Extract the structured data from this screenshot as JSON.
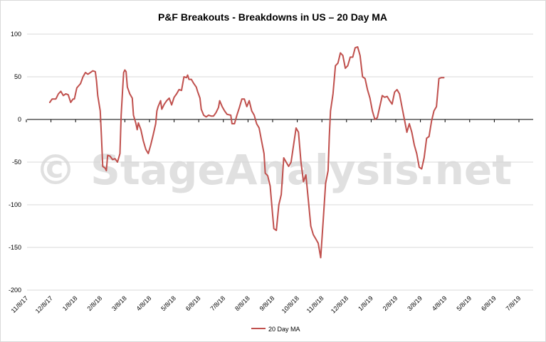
{
  "chart_data": {
    "type": "line",
    "title": "P&F Breakouts - Breakdowns in US – 20 Day MA",
    "watermark": "© StageAnalysis.net",
    "xlabel": "",
    "ylabel": "",
    "ylim": [
      -200,
      100
    ],
    "yticks": [
      100,
      50,
      0,
      -50,
      -100,
      -150,
      -200
    ],
    "x_tick_labels": [
      "11/8/17",
      "12/8/17",
      "1/8/18",
      "2/8/18",
      "3/8/18",
      "4/8/18",
      "5/8/18",
      "6/8/18",
      "7/8/18",
      "8/8/18",
      "9/8/18",
      "10/8/18",
      "11/8/18",
      "12/8/18",
      "1/8/19",
      "2/8/19",
      "3/8/19",
      "4/8/19",
      "5/8/19",
      "6/8/19",
      "7/8/19"
    ],
    "legend": "bottom",
    "series": [
      {
        "name": "20 Day MA",
        "color": "#c0504d",
        "points": [
          [
            0.95,
            20
          ],
          [
            1.05,
            24
          ],
          [
            1.2,
            24
          ],
          [
            1.3,
            30
          ],
          [
            1.4,
            33
          ],
          [
            1.5,
            28
          ],
          [
            1.6,
            30
          ],
          [
            1.7,
            29
          ],
          [
            1.8,
            20
          ],
          [
            1.9,
            24
          ],
          [
            1.95,
            24
          ],
          [
            2.05,
            37
          ],
          [
            2.2,
            42
          ],
          [
            2.3,
            50
          ],
          [
            2.4,
            55
          ],
          [
            2.5,
            53
          ],
          [
            2.6,
            55
          ],
          [
            2.7,
            57
          ],
          [
            2.8,
            56
          ],
          [
            2.85,
            45
          ],
          [
            2.9,
            28
          ],
          [
            3.0,
            10
          ],
          [
            3.05,
            -20
          ],
          [
            3.1,
            -55
          ],
          [
            3.2,
            -57
          ],
          [
            3.25,
            -60
          ],
          [
            3.3,
            -42
          ],
          [
            3.4,
            -43
          ],
          [
            3.5,
            -47
          ],
          [
            3.6,
            -46
          ],
          [
            3.7,
            -50
          ],
          [
            3.8,
            -40
          ],
          [
            3.85,
            5
          ],
          [
            3.9,
            30
          ],
          [
            3.95,
            55
          ],
          [
            4.0,
            58
          ],
          [
            4.05,
            56
          ],
          [
            4.1,
            38
          ],
          [
            4.2,
            30
          ],
          [
            4.3,
            25
          ],
          [
            4.35,
            5
          ],
          [
            4.45,
            -5
          ],
          [
            4.5,
            -12
          ],
          [
            4.55,
            -4
          ],
          [
            4.65,
            -12
          ],
          [
            4.75,
            -25
          ],
          [
            4.85,
            -35
          ],
          [
            4.95,
            -40
          ],
          [
            5.05,
            -30
          ],
          [
            5.15,
            -18
          ],
          [
            5.25,
            -5
          ],
          [
            5.3,
            10
          ],
          [
            5.35,
            15
          ],
          [
            5.45,
            22
          ],
          [
            5.5,
            12
          ],
          [
            5.6,
            18
          ],
          [
            5.7,
            22
          ],
          [
            5.8,
            25
          ],
          [
            5.9,
            17
          ],
          [
            6.0,
            26
          ],
          [
            6.1,
            30
          ],
          [
            6.2,
            35
          ],
          [
            6.3,
            34
          ],
          [
            6.4,
            50
          ],
          [
            6.5,
            49
          ],
          [
            6.55,
            52
          ],
          [
            6.6,
            47
          ],
          [
            6.7,
            47
          ],
          [
            6.8,
            42
          ],
          [
            6.9,
            38
          ],
          [
            6.95,
            33
          ],
          [
            7.05,
            25
          ],
          [
            7.1,
            12
          ],
          [
            7.2,
            5
          ],
          [
            7.3,
            3
          ],
          [
            7.4,
            5
          ],
          [
            7.5,
            4
          ],
          [
            7.6,
            4
          ],
          [
            7.7,
            8
          ],
          [
            7.8,
            14
          ],
          [
            7.85,
            22
          ],
          [
            7.95,
            15
          ],
          [
            8.05,
            10
          ],
          [
            8.15,
            6
          ],
          [
            8.3,
            5
          ],
          [
            8.35,
            -5
          ],
          [
            8.45,
            -5
          ],
          [
            8.55,
            5
          ],
          [
            8.65,
            14
          ],
          [
            8.75,
            24
          ],
          [
            8.85,
            24
          ],
          [
            8.95,
            15
          ],
          [
            9.05,
            22
          ],
          [
            9.15,
            10
          ],
          [
            9.25,
            5
          ],
          [
            9.35,
            -5
          ],
          [
            9.45,
            -10
          ],
          [
            9.55,
            -25
          ],
          [
            9.65,
            -40
          ],
          [
            9.7,
            -63
          ],
          [
            9.8,
            -66
          ],
          [
            9.9,
            -78
          ],
          [
            10.0,
            -112
          ],
          [
            10.05,
            -128
          ],
          [
            10.15,
            -130
          ],
          [
            10.25,
            -100
          ],
          [
            10.35,
            -88
          ],
          [
            10.45,
            -45
          ],
          [
            10.55,
            -50
          ],
          [
            10.65,
            -55
          ],
          [
            10.75,
            -50
          ],
          [
            10.85,
            -30
          ],
          [
            10.95,
            -10
          ],
          [
            11.05,
            -15
          ],
          [
            11.15,
            -50
          ],
          [
            11.25,
            -73
          ],
          [
            11.35,
            -65
          ],
          [
            11.45,
            -95
          ],
          [
            11.55,
            -125
          ],
          [
            11.65,
            -135
          ],
          [
            11.75,
            -140
          ],
          [
            11.85,
            -145
          ],
          [
            11.95,
            -162
          ],
          [
            12.05,
            -120
          ],
          [
            12.15,
            -75
          ],
          [
            12.25,
            -60
          ],
          [
            12.3,
            -20
          ],
          [
            12.35,
            10
          ],
          [
            12.45,
            30
          ],
          [
            12.55,
            63
          ],
          [
            12.65,
            66
          ],
          [
            12.75,
            78
          ],
          [
            12.85,
            75
          ],
          [
            12.95,
            60
          ],
          [
            13.05,
            63
          ],
          [
            13.15,
            73
          ],
          [
            13.25,
            73
          ],
          [
            13.35,
            84
          ],
          [
            13.45,
            85
          ],
          [
            13.55,
            75
          ],
          [
            13.65,
            50
          ],
          [
            13.75,
            48
          ],
          [
            13.85,
            35
          ],
          [
            13.95,
            25
          ],
          [
            14.05,
            10
          ],
          [
            14.15,
            0
          ],
          [
            14.25,
            2
          ],
          [
            14.35,
            15
          ],
          [
            14.45,
            28
          ],
          [
            14.55,
            26
          ],
          [
            14.65,
            27
          ],
          [
            14.75,
            22
          ],
          [
            14.85,
            18
          ],
          [
            14.95,
            32
          ],
          [
            15.05,
            35
          ],
          [
            15.15,
            30
          ],
          [
            15.25,
            15
          ],
          [
            15.35,
            0
          ],
          [
            15.45,
            -15
          ],
          [
            15.55,
            -5
          ],
          [
            15.65,
            -15
          ],
          [
            15.75,
            -30
          ],
          [
            15.85,
            -40
          ],
          [
            15.95,
            -56
          ],
          [
            16.05,
            -58
          ],
          [
            16.15,
            -45
          ],
          [
            16.25,
            -22
          ],
          [
            16.35,
            -20
          ],
          [
            16.45,
            -2
          ],
          [
            16.55,
            10
          ],
          [
            16.65,
            15
          ],
          [
            16.75,
            48
          ],
          [
            16.85,
            49
          ],
          [
            16.95,
            49
          ]
        ]
      }
    ]
  }
}
